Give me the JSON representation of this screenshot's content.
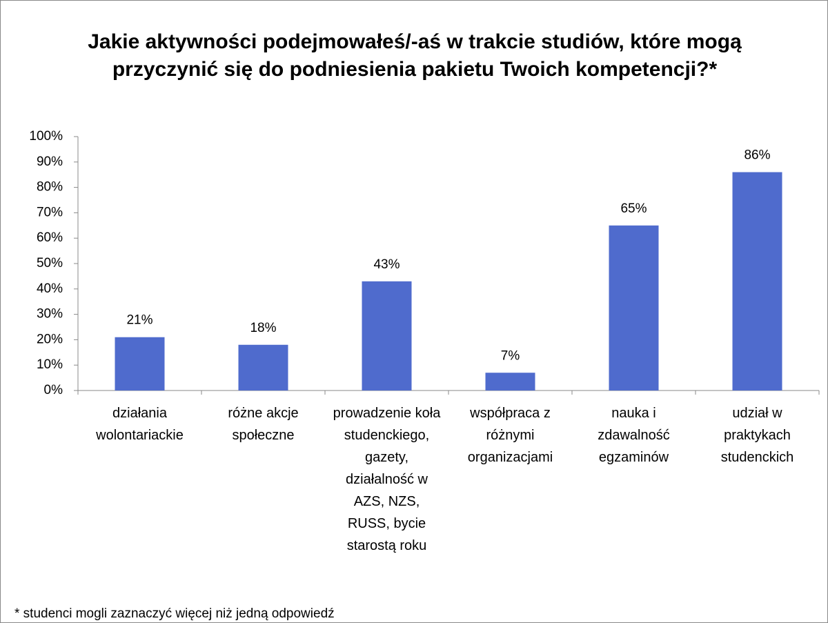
{
  "chart_data": {
    "type": "bar",
    "title": "Jakie aktywności podejmowałeś/-aś w trakcie studiów, które mogą przyczynić się do podniesienia pakietu Twoich kompetencji?*",
    "categories": [
      "działania wolontariackie",
      "różne akcje społeczne",
      "prowadzenie koła studenckiego, gazety, działalność w AZS, NZS, RUSS, bycie starostą roku",
      "współpraca z różnymi organizacjami",
      "nauka i zdawalność egzaminów",
      "udział w praktykach studenckich"
    ],
    "values": [
      21,
      18,
      43,
      7,
      65,
      86
    ],
    "value_labels": [
      "21%",
      "18%",
      "43%",
      "7%",
      "65%",
      "86%"
    ],
    "color": "#4f6bcd",
    "ylim": [
      0,
      100
    ],
    "yticks": [
      {
        "value": 0,
        "label": "0%"
      },
      {
        "value": 10,
        "label": "10%"
      },
      {
        "value": 20,
        "label": "20%"
      },
      {
        "value": 30,
        "label": "30%"
      },
      {
        "value": 40,
        "label": "40%"
      },
      {
        "value": 50,
        "label": "50%"
      },
      {
        "value": 60,
        "label": "60%"
      },
      {
        "value": 70,
        "label": "70%"
      },
      {
        "value": 80,
        "label": "80%"
      },
      {
        "value": 90,
        "label": "90%"
      },
      {
        "value": 100,
        "label": "100%"
      }
    ],
    "grid": false,
    "annotation": "* studenci mogli zaznaczyć więcej niż jedną odpowiedź"
  }
}
